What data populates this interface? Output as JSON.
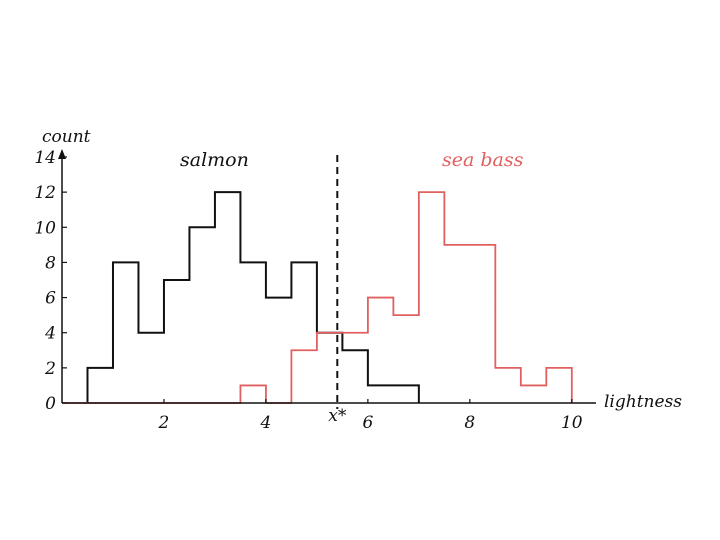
{
  "chart_data": {
    "type": "histogram-step",
    "xlabel": "lightness",
    "ylabel": "count",
    "xlim": [
      0,
      10.2
    ],
    "ylim": [
      0,
      14
    ],
    "x_ticks": [
      2,
      4,
      6,
      8,
      10
    ],
    "y_ticks": [
      0,
      2,
      4,
      6,
      8,
      10,
      12,
      14
    ],
    "threshold": {
      "label": "x*",
      "x": 5.4
    },
    "colors": {
      "salmon": "#111111",
      "sea_bass": "#e06060"
    },
    "series": [
      {
        "name": "salmon",
        "edges": [
          0.5,
          1.0,
          1.5,
          2.0,
          2.5,
          3.0,
          3.5,
          4.0,
          4.5,
          5.0,
          5.5,
          6.0,
          7.0
        ],
        "counts": [
          2,
          8,
          4,
          7,
          10,
          12,
          8,
          6,
          8,
          4,
          3,
          1
        ]
      },
      {
        "name": "sea bass",
        "edges": [
          0,
          3.5,
          4.0,
          4.5,
          5.0,
          6.0,
          6.5,
          7.0,
          7.5,
          8.5,
          9.0,
          9.5,
          10.0
        ],
        "counts": [
          0,
          1,
          0,
          3,
          4,
          6,
          5,
          12,
          9,
          2,
          1,
          2
        ]
      }
    ]
  }
}
